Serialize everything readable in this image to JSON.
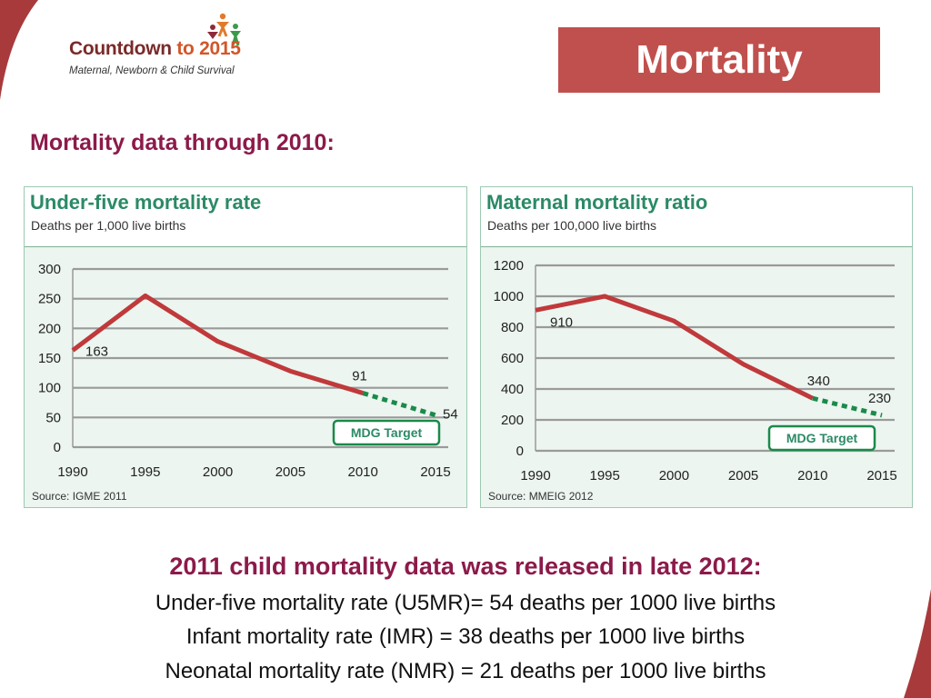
{
  "logo": {
    "name_main": "Countdown",
    "name_to": "to",
    "name_year": "2015",
    "tagline": "Maternal, Newborn & Child Survival"
  },
  "slide_title": "Mortality",
  "subtitle": "Mortality data through 2010:",
  "colors": {
    "accent_red": "#c0504d",
    "heading_maroon": "#8c1a4a",
    "chart_green": "#2b8a66",
    "line_red": "#c0393b",
    "target_green": "#1a8a4a"
  },
  "chart_data": [
    {
      "type": "line",
      "title": "Under-five mortality rate",
      "subtitle": "Deaths per 1,000 live births",
      "source": "Source: IGME 2011",
      "x_ticks": [
        "1990",
        "1995",
        "2000",
        "2005",
        "2010",
        "2015"
      ],
      "y_ticks": [
        "300",
        "250",
        "200",
        "150",
        "100",
        "50",
        "0"
      ],
      "ylim": [
        0,
        300
      ],
      "grid": true,
      "series": [
        {
          "style": "solid",
          "x": [
            1990,
            1995,
            2000,
            2005,
            2010
          ],
          "y": [
            163,
            255,
            178,
            128,
            91
          ]
        },
        {
          "style": "dotted",
          "x": [
            2010,
            2015
          ],
          "y": [
            91,
            54
          ]
        }
      ],
      "data_labels": [
        {
          "x": 1990,
          "y": 163,
          "text": "163"
        },
        {
          "x": 2010,
          "y": 91,
          "text": "91"
        },
        {
          "x": 2015,
          "y": 54,
          "text": "54"
        }
      ],
      "annotation": "MDG Target"
    },
    {
      "type": "line",
      "title": "Maternal mortality ratio",
      "subtitle": "Deaths per 100,000 live births",
      "source": "Source: MMEIG 2012",
      "x_ticks": [
        "1990",
        "1995",
        "2000",
        "2005",
        "2010",
        "2015"
      ],
      "y_ticks": [
        "1200",
        "1000",
        "800",
        "600",
        "400",
        "200",
        "0"
      ],
      "ylim": [
        0,
        1200
      ],
      "grid": true,
      "series": [
        {
          "style": "solid",
          "x": [
            1990,
            1995,
            2000,
            2005,
            2010
          ],
          "y": [
            910,
            1000,
            840,
            560,
            340
          ]
        },
        {
          "style": "dotted",
          "x": [
            2010,
            2015
          ],
          "y": [
            340,
            230
          ]
        }
      ],
      "data_labels": [
        {
          "x": 1990,
          "y": 910,
          "text": "910"
        },
        {
          "x": 2010,
          "y": 340,
          "text": "340"
        },
        {
          "x": 2015,
          "y": 230,
          "text": "230"
        }
      ],
      "annotation": "MDG Target"
    }
  ],
  "summary": {
    "heading": "2011 child mortality data was released in late 2012:",
    "line1": "Under-five mortality rate (U5MR)= 54 deaths per 1000 live births",
    "line2": "Infant mortality rate (IMR) = 38 deaths per 1000 live births",
    "line3": "Neonatal mortality rate (NMR) = 21 deaths per 1000 live births"
  }
}
